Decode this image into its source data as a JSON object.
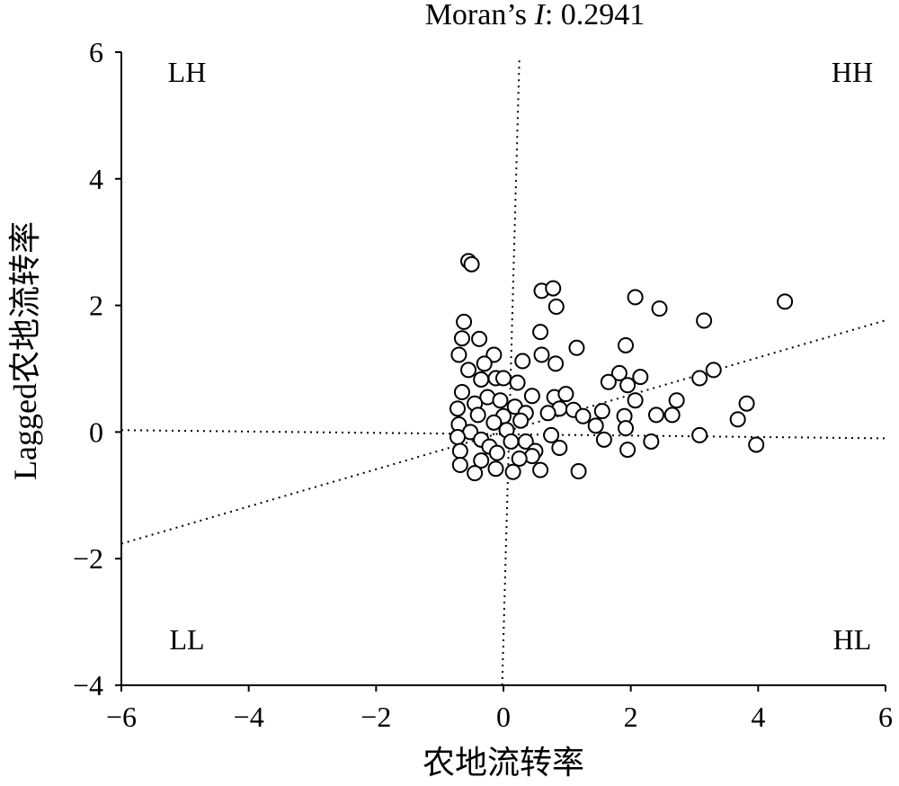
{
  "chart_data": {
    "type": "scatter",
    "title": "Moran’s I: 0.2941",
    "title_prefix": "Moran’s ",
    "title_stat": "I",
    "title_suffix": ": 0.2941",
    "xlabel": "农地流转率",
    "ylabel": "Lagged农地流转率",
    "xlim": [
      -6,
      6
    ],
    "ylim": [
      -4,
      6
    ],
    "xticks": [
      -6,
      -4,
      -2,
      0,
      2,
      4,
      6
    ],
    "yticks": [
      -4,
      -2,
      0,
      2,
      4,
      6
    ],
    "xtick_labels": [
      "−6",
      "−4",
      "−2",
      "0",
      "2",
      "4",
      "6"
    ],
    "ytick_labels": [
      "−4",
      "−2",
      "0",
      "2",
      "4",
      "6"
    ],
    "quadrants": {
      "LH": "LH",
      "HH": "HH",
      "LL": "LL",
      "HL": "HL"
    },
    "grid": false,
    "reference_lines": {
      "regression": {
        "slope": 0.2941,
        "intercept": 0.0
      },
      "vertical": {
        "from": [
          -0.02,
          -4.0
        ],
        "to": [
          0.25,
          5.9
        ]
      },
      "horizontal": {
        "from": [
          -6.0,
          0.03
        ],
        "to": [
          6.0,
          -0.1
        ]
      }
    },
    "points": [
      [
        -0.55,
        2.7
      ],
      [
        -0.5,
        2.65
      ],
      [
        0.6,
        2.23
      ],
      [
        0.78,
        2.27
      ],
      [
        0.83,
        1.98
      ],
      [
        2.07,
        2.13
      ],
      [
        2.45,
        1.95
      ],
      [
        3.15,
        1.76
      ],
      [
        4.42,
        2.06
      ],
      [
        -0.62,
        1.74
      ],
      [
        0.58,
        1.58
      ],
      [
        -0.65,
        1.48
      ],
      [
        -0.38,
        1.47
      ],
      [
        1.15,
        1.33
      ],
      [
        1.92,
        1.37
      ],
      [
        -0.7,
        1.22
      ],
      [
        -0.15,
        1.22
      ],
      [
        0.6,
        1.22
      ],
      [
        0.3,
        1.12
      ],
      [
        -0.3,
        1.08
      ],
      [
        0.82,
        1.08
      ],
      [
        -0.55,
        0.98
      ],
      [
        1.82,
        0.93
      ],
      [
        2.15,
        0.87
      ],
      [
        3.08,
        0.85
      ],
      [
        3.3,
        0.98
      ],
      [
        -0.35,
        0.83
      ],
      [
        -0.12,
        0.85
      ],
      [
        0.0,
        0.85
      ],
      [
        0.22,
        0.78
      ],
      [
        1.65,
        0.79
      ],
      [
        1.95,
        0.74
      ],
      [
        -0.65,
        0.63
      ],
      [
        -0.25,
        0.55
      ],
      [
        0.45,
        0.57
      ],
      [
        0.8,
        0.55
      ],
      [
        0.98,
        0.6
      ],
      [
        -0.45,
        0.45
      ],
      [
        -0.05,
        0.5
      ],
      [
        0.18,
        0.4
      ],
      [
        0.88,
        0.37
      ],
      [
        1.1,
        0.35
      ],
      [
        2.07,
        0.5
      ],
      [
        2.72,
        0.5
      ],
      [
        3.82,
        0.45
      ],
      [
        -0.72,
        0.37
      ],
      [
        -0.4,
        0.27
      ],
      [
        0.0,
        0.25
      ],
      [
        0.35,
        0.3
      ],
      [
        0.7,
        0.3
      ],
      [
        1.25,
        0.25
      ],
      [
        1.55,
        0.33
      ],
      [
        1.9,
        0.25
      ],
      [
        2.4,
        0.27
      ],
      [
        2.65,
        0.27
      ],
      [
        3.68,
        0.2
      ],
      [
        -0.7,
        0.12
      ],
      [
        -0.15,
        0.15
      ],
      [
        0.27,
        0.18
      ],
      [
        1.45,
        0.1
      ],
      [
        1.92,
        0.06
      ],
      [
        -0.52,
        0.0
      ],
      [
        0.05,
        0.03
      ],
      [
        0.75,
        -0.05
      ],
      [
        3.08,
        -0.05
      ],
      [
        -0.72,
        -0.08
      ],
      [
        -0.35,
        -0.12
      ],
      [
        0.12,
        -0.15
      ],
      [
        0.35,
        -0.15
      ],
      [
        1.58,
        -0.12
      ],
      [
        2.32,
        -0.15
      ],
      [
        3.97,
        -0.2
      ],
      [
        -0.68,
        -0.3
      ],
      [
        -0.22,
        -0.23
      ],
      [
        0.5,
        -0.3
      ],
      [
        0.88,
        -0.25
      ],
      [
        1.95,
        -0.28
      ],
      [
        -0.1,
        -0.33
      ],
      [
        0.45,
        -0.38
      ],
      [
        0.25,
        -0.42
      ],
      [
        -0.35,
        -0.45
      ],
      [
        -0.68,
        -0.52
      ],
      [
        -0.12,
        -0.58
      ],
      [
        0.58,
        -0.6
      ],
      [
        0.15,
        -0.63
      ],
      [
        -0.45,
        -0.65
      ],
      [
        1.18,
        -0.62
      ]
    ]
  }
}
